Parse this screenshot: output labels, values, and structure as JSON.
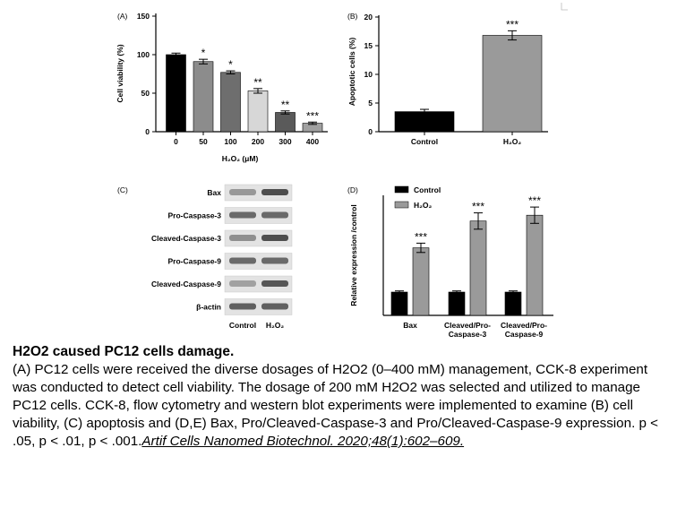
{
  "chart_data": [
    {
      "panel": "(A)",
      "type": "bar",
      "categories": [
        "0",
        "50",
        "100",
        "200",
        "300",
        "400"
      ],
      "values": [
        100,
        91,
        77,
        53,
        25,
        11
      ],
      "errors": [
        2,
        3,
        2,
        3,
        2,
        1.5
      ],
      "significance": [
        "",
        "*",
        "*",
        "**",
        "**",
        "***"
      ],
      "colors": [
        "#000000",
        "#8c8c8c",
        "#6e6e6e",
        "#d7d7d7",
        "#5a5a5a",
        "#a0a0a0"
      ],
      "xlabel": "H₂O₂ (μM)",
      "ylabel": "Cell viability (%)",
      "ylim": [
        0,
        150
      ],
      "yticks": [
        "0",
        "50",
        "100",
        "150"
      ],
      "grid": false
    },
    {
      "panel": "(B)",
      "type": "bar",
      "categories": [
        "Control",
        "H₂O₂"
      ],
      "values": [
        3.5,
        16.8
      ],
      "errors": [
        0.4,
        0.8
      ],
      "significance": [
        "",
        "***"
      ],
      "colors": [
        "#000000",
        "#9a9a9a"
      ],
      "ylabel": "Apoptotic cells (%)",
      "ylim": [
        0,
        20
      ],
      "yticks": [
        "0",
        "5",
        "10",
        "15",
        "20"
      ],
      "grid": false
    },
    {
      "panel": "(C)",
      "type": "blot",
      "rows": [
        "Bax",
        "Pro-Caspase-3",
        "Cleaved-Caspase-3",
        "Pro-Caspase-9",
        "Cleaved-Caspase-9",
        "β-actin"
      ],
      "columns": [
        "Control",
        "H₂O₂"
      ],
      "intensity": [
        [
          0.45,
          0.85
        ],
        [
          0.7,
          0.7
        ],
        [
          0.5,
          0.85
        ],
        [
          0.7,
          0.7
        ],
        [
          0.4,
          0.8
        ],
        [
          0.75,
          0.75
        ]
      ]
    },
    {
      "panel": "(D)",
      "type": "bar",
      "categories": [
        "Bax",
        "Cleaved/Pro-\nCaspase-3",
        "Cleaved/Pro-\nCaspase-9"
      ],
      "series": [
        {
          "name": "Control",
          "values": [
            1.0,
            1.0,
            1.0
          ],
          "errors": [
            0.05,
            0.05,
            0.05
          ],
          "color": "#000000"
        },
        {
          "name": "H₂O₂",
          "values": [
            2.9,
            4.05,
            4.3
          ],
          "errors": [
            0.2,
            0.35,
            0.35
          ],
          "color": "#9a9a9a"
        }
      ],
      "significance": [
        "***",
        "***",
        "***"
      ],
      "ylabel": "Relative expression /control",
      "ylim": [
        0,
        5
      ],
      "legend": "top-left",
      "grid": false
    }
  ],
  "caption": {
    "title": "H2O2 caused PC12 cells damage.",
    "body": "(A) PC12 cells were received the diverse dosages of H2O2 (0–400 mM) management, CCK-8 experiment was conducted to detect cell viability. The dosage of 200 mM H2O2 was selected and utilized to manage PC12 cells. CCK-8, flow cytometry and western blot experiments were implemented to examine (B) cell viability, (C) apoptosis and (D,E) Bax, Pro/Cleaved-Caspase-3 and Pro/Cleaved-Caspase-9 expression. p < .05, p < .01, p < .001.",
    "citation": "Artif Cells Nanomed Biotechnol. 2020;48(1):602–609."
  }
}
